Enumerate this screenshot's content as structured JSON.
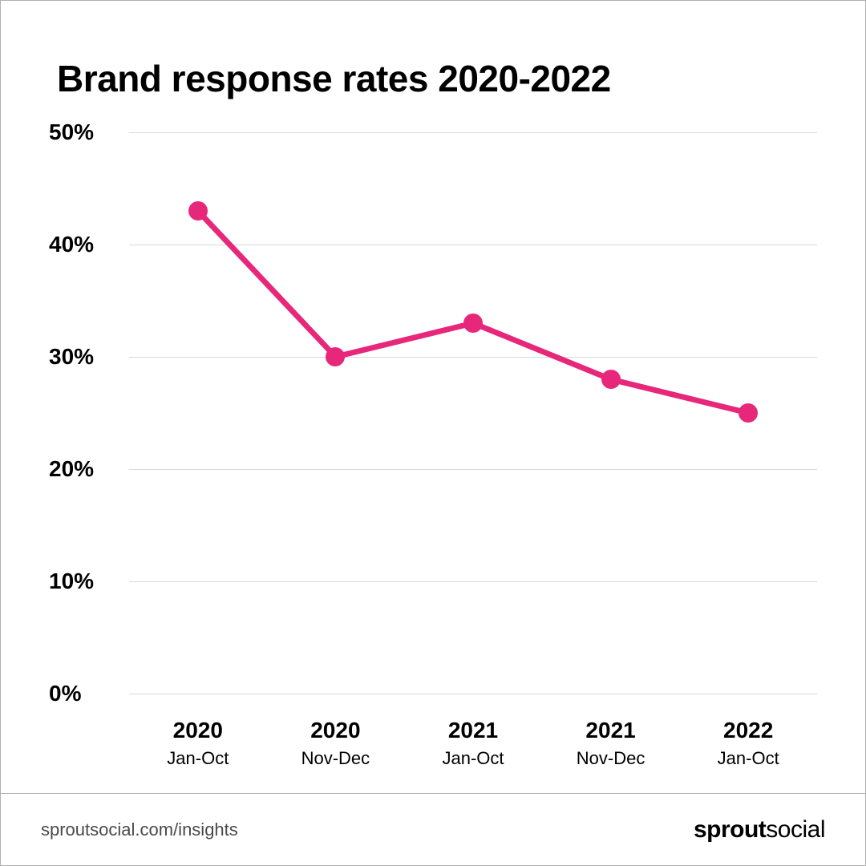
{
  "title": "Brand response rates 2020-2022",
  "chart": {
    "type": "line",
    "line_color": "#e7287a",
    "line_width": 7,
    "marker_radius": 12,
    "marker_fill": "#e7287a",
    "background_color": "#ffffff",
    "grid_color": "#d9d9d9",
    "ylim": [
      0,
      50
    ],
    "ytick_step": 10,
    "y_suffix": "%",
    "y_ticks": [
      0,
      10,
      20,
      30,
      40,
      50
    ],
    "title_fontsize": 46,
    "label_fontsize": 28,
    "sublabel_fontsize": 22,
    "categories": [
      {
        "year": "2020",
        "range": "Jan-Oct"
      },
      {
        "year": "2020",
        "range": "Nov-Dec"
      },
      {
        "year": "2021",
        "range": "Jan-Oct"
      },
      {
        "year": "2021",
        "range": "Nov-Dec"
      },
      {
        "year": "2022",
        "range": "Jan-Oct"
      }
    ],
    "values": [
      43,
      30,
      33,
      28,
      25
    ]
  },
  "footer": {
    "url": "sproutsocial.com/insights",
    "brand_bold": "sprout",
    "brand_light": "social"
  }
}
